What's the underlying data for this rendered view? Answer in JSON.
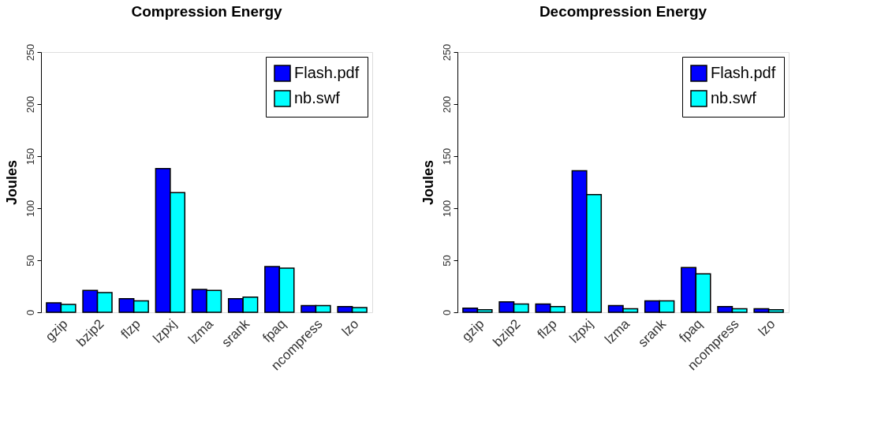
{
  "chart_data": [
    {
      "type": "bar",
      "title": "Compression Energy",
      "ylabel": "Joules",
      "categories": [
        "gzip",
        "bzip2",
        "flzp",
        "lzpxj",
        "lzma",
        "srank",
        "fpaq",
        "ncompress",
        "lzo"
      ],
      "ylim": [
        0,
        250
      ],
      "yticks": [
        0,
        50,
        100,
        150,
        200,
        250
      ],
      "legend": "top right",
      "series": [
        {
          "name": "Flash.pdf",
          "color": "#0000ff",
          "values": [
            9,
            21,
            13,
            138,
            22,
            13,
            44,
            6.5,
            5.5
          ]
        },
        {
          "name": "nb.swf",
          "color": "#00ffff",
          "values": [
            7.5,
            19,
            11,
            115,
            21,
            14.5,
            42.5,
            6.5,
            4.5
          ]
        }
      ]
    },
    {
      "type": "bar",
      "title": "Decompression Energy",
      "ylabel": "Joules",
      "categories": [
        "gzip",
        "bzip2",
        "flzp",
        "lzpxj",
        "lzma",
        "srank",
        "fpaq",
        "ncompress",
        "lzo"
      ],
      "ylim": [
        0,
        250
      ],
      "yticks": [
        0,
        50,
        100,
        150,
        200,
        250
      ],
      "legend": "top right",
      "series": [
        {
          "name": "Flash.pdf",
          "color": "#0000ff",
          "values": [
            4,
            10,
            8,
            136,
            6.5,
            11,
            43,
            5.5,
            3.5
          ]
        },
        {
          "name": "nb.swf",
          "color": "#00ffff",
          "values": [
            2.5,
            8,
            5.5,
            113,
            3.5,
            11,
            37,
            3.5,
            2.5
          ]
        }
      ]
    }
  ]
}
